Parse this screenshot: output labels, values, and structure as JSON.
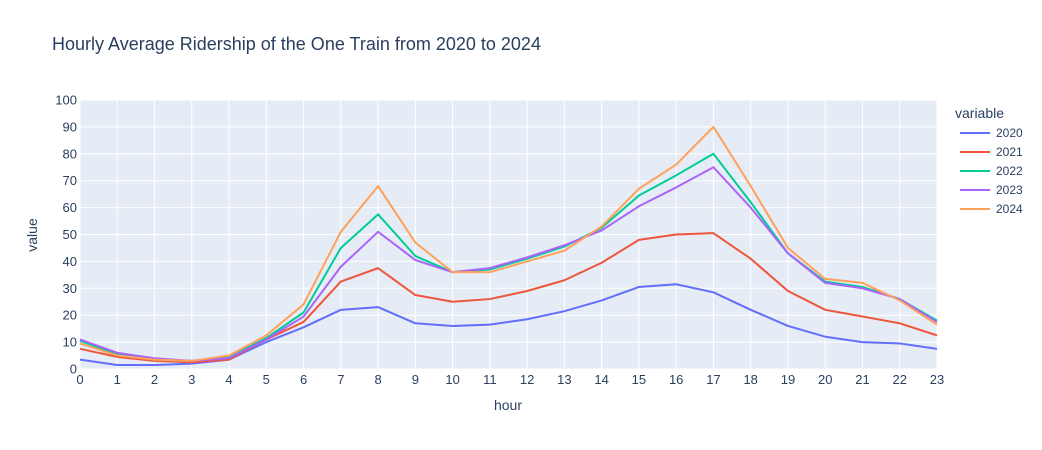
{
  "chart_data": {
    "type": "line",
    "title": "Hourly Average Ridership of the One Train from 2020 to 2024",
    "xlabel": "hour",
    "ylabel": "value",
    "legend_title": "variable",
    "legend_position": "right",
    "grid": true,
    "xlim": [
      0,
      23
    ],
    "ylim": [
      0,
      100
    ],
    "x": [
      0,
      1,
      2,
      3,
      4,
      5,
      6,
      7,
      8,
      9,
      10,
      11,
      12,
      13,
      14,
      15,
      16,
      17,
      18,
      19,
      20,
      21,
      22,
      23
    ],
    "y_ticks": [
      0,
      10,
      20,
      30,
      40,
      50,
      60,
      70,
      80,
      90,
      100
    ],
    "series": [
      {
        "name": "2020",
        "color": "#636efa",
        "values": [
          3.5,
          1.5,
          1.5,
          2,
          3.5,
          10,
          15.5,
          22,
          23,
          17,
          16,
          16.5,
          18.5,
          21.5,
          25.5,
          30.5,
          31.5,
          28.5,
          22,
          16,
          12,
          10,
          9.5,
          7.5
        ]
      },
      {
        "name": "2021",
        "color": "#ef553b",
        "values": [
          7.5,
          4.5,
          3,
          2.5,
          3.5,
          11,
          17.5,
          32.5,
          37.5,
          27.5,
          25,
          26,
          29,
          33,
          39.5,
          48,
          50,
          50.5,
          41,
          29,
          22,
          19.5,
          17,
          12.5
        ]
      },
      {
        "name": "2022",
        "color": "#00cc96",
        "values": [
          10.5,
          5.5,
          3.5,
          3,
          4.5,
          11.5,
          21,
          45,
          57.5,
          42,
          36,
          37,
          41,
          45.5,
          52.5,
          64.5,
          72,
          80,
          62,
          43,
          32.5,
          30.5,
          26,
          18
        ]
      },
      {
        "name": "2023",
        "color": "#ab63fa",
        "values": [
          11,
          6,
          4,
          3,
          4,
          11,
          19.5,
          38,
          51,
          40.5,
          36,
          37.5,
          41.5,
          46,
          51.5,
          60.5,
          67.5,
          75,
          60,
          43,
          32,
          30,
          26,
          17.5
        ]
      },
      {
        "name": "2024",
        "color": "#ffa15a",
        "values": [
          9.5,
          5,
          3.5,
          3,
          5,
          12.5,
          24,
          51,
          68,
          47,
          36,
          36,
          40,
          44,
          53,
          67,
          76,
          90,
          68,
          45,
          33.5,
          32,
          25.5,
          16.5
        ]
      }
    ]
  }
}
